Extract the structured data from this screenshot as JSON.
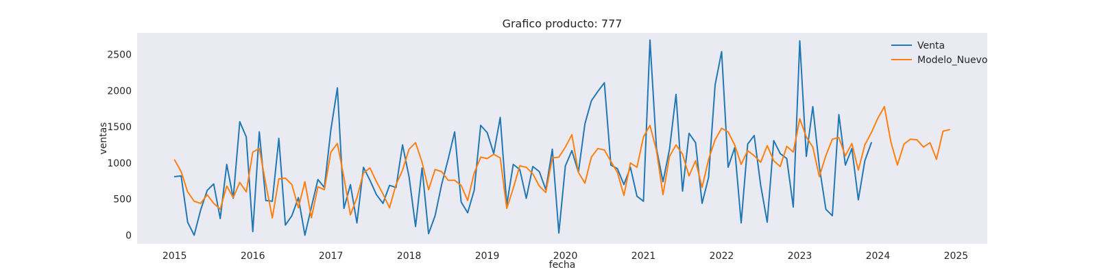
{
  "chart_data": {
    "type": "line",
    "title": "Grafico producto: 777",
    "xlabel": "fecha",
    "ylabel": "ventas",
    "xlim": [
      2014.52,
      2025.4
    ],
    "ylim": [
      -120,
      2800
    ],
    "xticks": [
      "2015",
      "2016",
      "2017",
      "2018",
      "2019",
      "2020",
      "2021",
      "2022",
      "2023",
      "2024",
      "2025"
    ],
    "yticks": [
      "0",
      "500",
      "1000",
      "1500",
      "2000",
      "2500"
    ],
    "grid": false,
    "legend_position": "top-right",
    "background": "#eaeaf2",
    "series": [
      {
        "name": "Venta",
        "color": "#1f77b4",
        "start": "2015-01",
        "values": [
          810,
          820,
          180,
          0,
          350,
          620,
          710,
          230,
          980,
          510,
          1570,
          1360,
          50,
          1430,
          480,
          470,
          1340,
          140,
          270,
          520,
          0,
          390,
          770,
          660,
          1460,
          2040,
          370,
          700,
          170,
          940,
          760,
          560,
          440,
          690,
          660,
          1250,
          810,
          120,
          930,
          20,
          270,
          700,
          1050,
          1430,
          460,
          310,
          620,
          1520,
          1420,
          1130,
          1630,
          420,
          980,
          910,
          510,
          950,
          880,
          630,
          1190,
          30,
          960,
          1170,
          870,
          1540,
          1860,
          1990,
          2110,
          970,
          920,
          700,
          940,
          540,
          470,
          2700,
          1200,
          740,
          1190,
          1950,
          610,
          1410,
          1280,
          440,
          800,
          2080,
          2540,
          940,
          1210,
          170,
          1260,
          1380,
          690,
          180,
          1310,
          1130,
          1060,
          390,
          2690,
          1090,
          1780,
          950,
          360,
          270,
          1670,
          970,
          1200,
          490,
          1030,
          1280
        ]
      },
      {
        "name": "Modelo_Nuevo",
        "color": "#ff7f0e",
        "start": "2015-01",
        "values": [
          1040,
          880,
          600,
          470,
          440,
          560,
          440,
          360,
          680,
          520,
          730,
          600,
          1150,
          1200,
          710,
          240,
          780,
          790,
          700,
          380,
          740,
          240,
          670,
          630,
          1150,
          1270,
          800,
          280,
          520,
          860,
          930,
          740,
          570,
          380,
          700,
          900,
          1190,
          1280,
          1010,
          630,
          910,
          880,
          760,
          760,
          690,
          480,
          860,
          1080,
          1060,
          1120,
          1070,
          370,
          650,
          960,
          940,
          850,
          680,
          590,
          1070,
          1080,
          1220,
          1390,
          870,
          720,
          1080,
          1200,
          1180,
          1020,
          870,
          550,
          1000,
          940,
          1360,
          1520,
          1170,
          560,
          1090,
          1250,
          1120,
          820,
          1030,
          660,
          1050,
          1320,
          1480,
          1430,
          1250,
          980,
          1170,
          1100,
          1010,
          1240,
          1030,
          950,
          1230,
          1150,
          1610,
          1360,
          1220,
          810,
          1100,
          1330,
          1350,
          1100,
          1270,
          900,
          1250,
          1420,
          1620,
          1780,
          1290,
          970,
          1260,
          1330,
          1320,
          1220,
          1280,
          1050,
          1440,
          1460
        ]
      }
    ]
  }
}
